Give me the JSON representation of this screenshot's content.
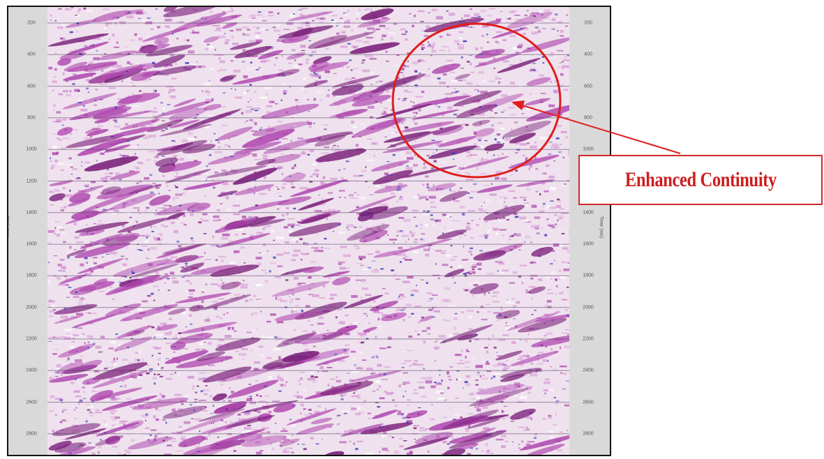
{
  "figure": {
    "callout": {
      "label": "Enhanced Continuity",
      "color": "#cc1f1f"
    },
    "axis": {
      "left_ticks": [
        "200",
        "400",
        "600",
        "800",
        "1000",
        "1200",
        "1400",
        "1600",
        "1800",
        "2000",
        "2200",
        "2400",
        "2600",
        "2800"
      ],
      "right_ticks": [
        "200",
        "400",
        "600",
        "800",
        "1000",
        "1200",
        "1400",
        "1600",
        "1800",
        "2000",
        "2200",
        "2400",
        "2600",
        "2800"
      ],
      "title_left": "Time (ms)",
      "title_right": "Time (ms)"
    },
    "colors": {
      "wiggle_dark": "#7a1f7a",
      "wiggle_mid": "#b04ab0",
      "wiggle_light": "#d89ad6",
      "speckle_blue": "#3a3ab8",
      "background": "#efe2ee",
      "annotation_red": "#e01c1c"
    }
  }
}
